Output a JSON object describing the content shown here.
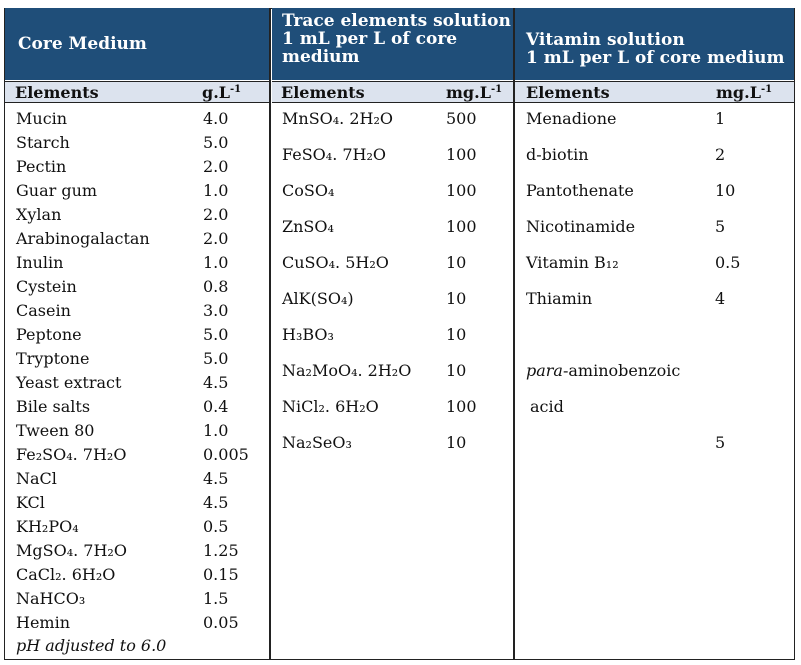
{
  "headers": {
    "core": "Core Medium",
    "trace": [
      "Trace elements solution",
      "1 mL per L of core",
      "medium"
    ],
    "vitamin": [
      "Vitamin solution",
      "1 mL per L of core medium"
    ]
  },
  "subheaders": {
    "core_elements": "Elements",
    "core_unit": "g.L",
    "core_unit_exp": "-1",
    "trace_elements": "Elements",
    "trace_unit": "mg.L",
    "trace_unit_exp": "-1",
    "vitamin_elements": "Elements",
    "vitamin_unit": "mg.L",
    "vitamin_unit_exp": "-1"
  },
  "core": [
    [
      "Mucin",
      "4.0"
    ],
    [
      "Starch",
      "5.0"
    ],
    [
      "Pectin",
      "2.0"
    ],
    [
      "Guar gum",
      "1.0"
    ],
    [
      "Xylan",
      "2.0"
    ],
    [
      "Arabinogalactan",
      "2.0"
    ],
    [
      "Inulin",
      "1.0"
    ],
    [
      "Cystein",
      "0.8"
    ],
    [
      "Casein",
      "3.0"
    ],
    [
      "Peptone",
      "5.0"
    ],
    [
      "Tryptone",
      "5.0"
    ],
    [
      "Yeast extract",
      "4.5"
    ],
    [
      "Bile salts",
      "0.4"
    ],
    [
      "Tween 80",
      "1.0"
    ],
    [
      "Fe₂SO₄. 7H₂O",
      "0.005"
    ],
    [
      "NaCl",
      "4.5"
    ],
    [
      "KCl",
      "4.5"
    ],
    [
      "KH₂PO₄",
      "0.5"
    ],
    [
      "MgSO₄. 7H₂O",
      "1.25"
    ],
    [
      "CaCl₂. 6H₂O",
      "0.15"
    ],
    [
      "NaHCO₃",
      "1.5"
    ],
    [
      "Hemin",
      "0.05"
    ]
  ],
  "core_footnote": "pH adjusted to 6.0",
  "trace": [
    [
      "MnSO₄. 2H₂O",
      "500"
    ],
    [
      "FeSO₄. 7H₂O",
      "100"
    ],
    [
      "CoSO₄",
      "100"
    ],
    [
      "ZnSO₄",
      "100"
    ],
    [
      "CuSO₄. 5H₂O",
      "10"
    ],
    [
      "AlK(SO₄)",
      "10"
    ],
    [
      "H₃BO₃",
      "10"
    ],
    [
      "Na₂MoO₄. 2H₂O",
      "10"
    ],
    [
      "NiCl₂. 6H₂O",
      "100"
    ],
    [
      "Na₂SeO₃",
      "10"
    ]
  ],
  "vitamin": [
    [
      "Menadione",
      "1"
    ],
    [
      "d-biotin",
      "2"
    ],
    [
      "Pantothenate",
      "10"
    ],
    [
      "Nicotinamide",
      "5"
    ],
    [
      "Vitamin B₁₂",
      "0.5"
    ],
    [
      "Thiamin",
      "4"
    ]
  ],
  "vitamin_extra": {
    "para_prefix": "para",
    "para_rest": "-aminobenzoic",
    "acid": "acid",
    "value": "5"
  },
  "colors": {
    "header_bg": "#1F4E79",
    "subheader_bg": "#DCE3EE",
    "header_text": "#FFFFFF"
  }
}
